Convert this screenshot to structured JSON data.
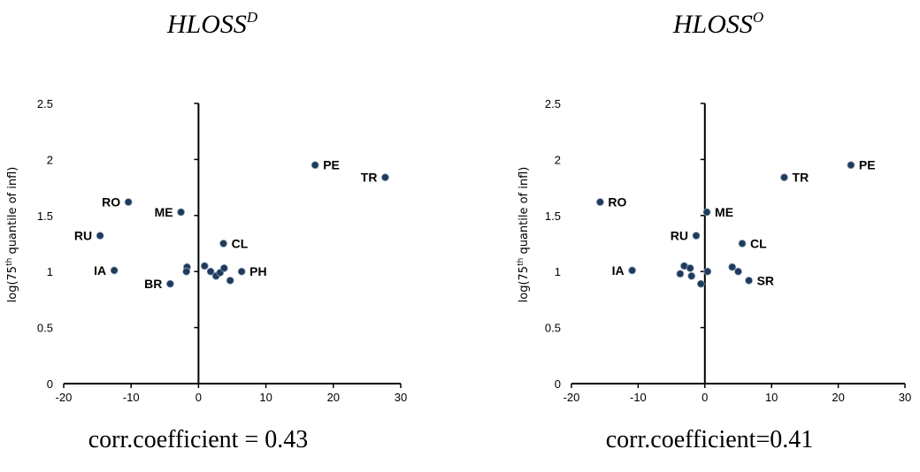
{
  "panels": [
    {
      "title_base": "HLOSS",
      "title_sup": "D",
      "footer": "corr.coefficient = 0.43"
    },
    {
      "title_base": "HLOSS",
      "title_sup": "O",
      "footer": "corr.coefficient=0.41"
    }
  ],
  "chart_data": [
    {
      "type": "scatter",
      "title": "HLOSS^D",
      "xlabel": "",
      "ylabel": "log(75th quantile of infl)",
      "xlim": [
        -20,
        30
      ],
      "ylim": [
        0,
        2.5
      ],
      "xticks": [
        -20,
        -10,
        0,
        10,
        20,
        30
      ],
      "yticks": [
        0,
        0.5,
        1,
        1.5,
        2,
        2.5
      ],
      "marker_color": "#1f3a5a",
      "points": [
        {
          "x": 17.3,
          "y": 1.95,
          "label": "PE",
          "label_pos": "right"
        },
        {
          "x": 27.7,
          "y": 1.84,
          "label": "TR",
          "label_pos": "left"
        },
        {
          "x": -10.4,
          "y": 1.62,
          "label": "RO",
          "label_pos": "left"
        },
        {
          "x": -2.6,
          "y": 1.53,
          "label": "ME",
          "label_pos": "left"
        },
        {
          "x": -14.6,
          "y": 1.32,
          "label": "RU",
          "label_pos": "left"
        },
        {
          "x": 3.7,
          "y": 1.25,
          "label": "CL",
          "label_pos": "right"
        },
        {
          "x": -12.5,
          "y": 1.01,
          "label": "IA",
          "label_pos": "left"
        },
        {
          "x": -4.2,
          "y": 0.89,
          "label": "BR",
          "label_pos": "left"
        },
        {
          "x": 6.4,
          "y": 1.0,
          "label": "PH",
          "label_pos": "right"
        },
        {
          "x": -1.7,
          "y": 1.04,
          "label": ""
        },
        {
          "x": -1.8,
          "y": 1.0,
          "label": ""
        },
        {
          "x": 0.9,
          "y": 1.05,
          "label": ""
        },
        {
          "x": 1.8,
          "y": 1.0,
          "label": ""
        },
        {
          "x": 2.6,
          "y": 0.96,
          "label": ""
        },
        {
          "x": 3.2,
          "y": 0.99,
          "label": ""
        },
        {
          "x": 3.8,
          "y": 1.03,
          "label": ""
        },
        {
          "x": 4.7,
          "y": 0.92,
          "label": ""
        }
      ]
    },
    {
      "type": "scatter",
      "title": "HLOSS^O",
      "xlabel": "",
      "ylabel": "log(75th quantile of infl)",
      "xlim": [
        -20,
        30
      ],
      "ylim": [
        0,
        2.5
      ],
      "xticks": [
        -20,
        -10,
        0,
        10,
        20,
        30
      ],
      "yticks": [
        0,
        0.5,
        1,
        1.5,
        2,
        2.5
      ],
      "marker_color": "#1f3a5a",
      "points": [
        {
          "x": 21.9,
          "y": 1.95,
          "label": "PE",
          "label_pos": "right"
        },
        {
          "x": 11.9,
          "y": 1.84,
          "label": "TR",
          "label_pos": "right"
        },
        {
          "x": -15.7,
          "y": 1.62,
          "label": "RO",
          "label_pos": "right"
        },
        {
          "x": 0.3,
          "y": 1.53,
          "label": "ME",
          "label_pos": "right"
        },
        {
          "x": -1.3,
          "y": 1.32,
          "label": "RU",
          "label_pos": "left"
        },
        {
          "x": 5.6,
          "y": 1.25,
          "label": "CL",
          "label_pos": "right"
        },
        {
          "x": -10.9,
          "y": 1.01,
          "label": "IA",
          "label_pos": "left"
        },
        {
          "x": 6.6,
          "y": 0.92,
          "label": "SR",
          "label_pos": "right"
        },
        {
          "x": -3.1,
          "y": 1.05,
          "label": ""
        },
        {
          "x": -2.2,
          "y": 1.03,
          "label": ""
        },
        {
          "x": -3.7,
          "y": 0.98,
          "label": ""
        },
        {
          "x": -2.0,
          "y": 0.96,
          "label": ""
        },
        {
          "x": -0.6,
          "y": 0.89,
          "label": ""
        },
        {
          "x": 0.4,
          "y": 1.0,
          "label": ""
        },
        {
          "x": 4.1,
          "y": 1.04,
          "label": ""
        },
        {
          "x": 5.0,
          "y": 1.0,
          "label": ""
        }
      ]
    }
  ]
}
